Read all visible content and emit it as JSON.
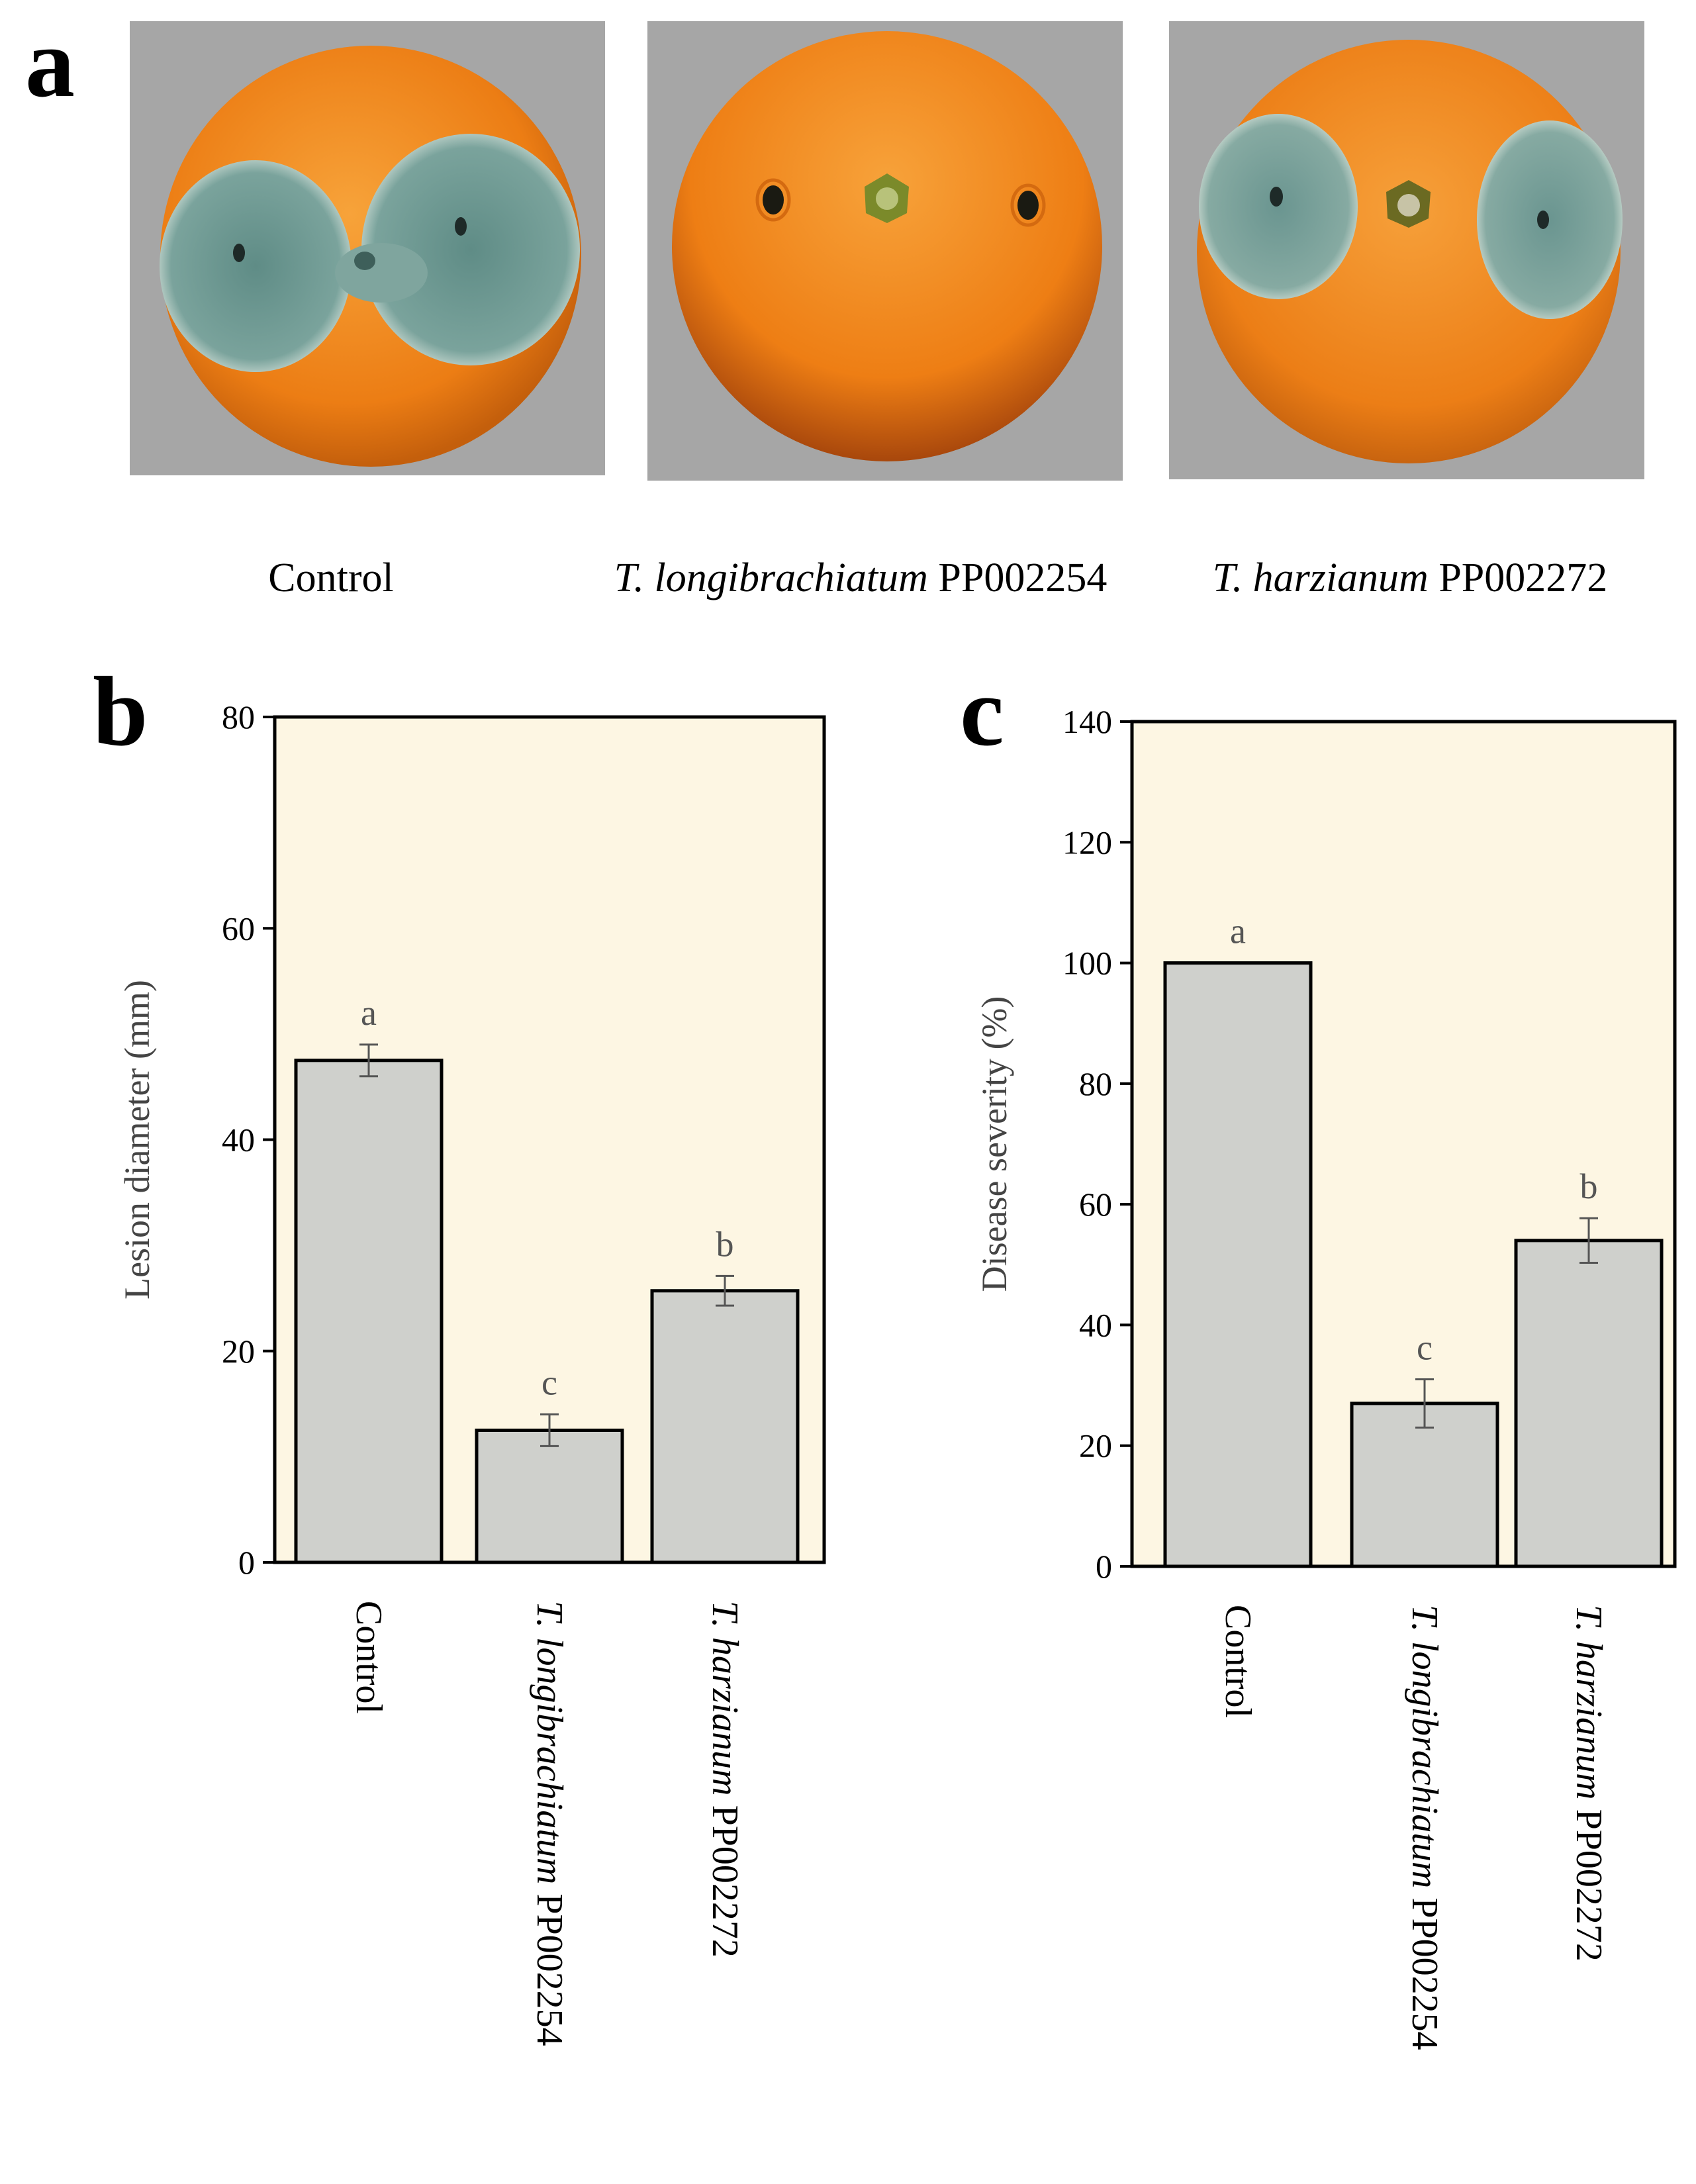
{
  "panel_labels": {
    "a": "a",
    "b": "b",
    "c": "c"
  },
  "photos": [
    {
      "id": "control",
      "species": "",
      "code": "Control"
    },
    {
      "id": "longi",
      "species": "T. longibrachiatum",
      "code": "PP002254"
    },
    {
      "id": "harz",
      "species": "T. harzianum",
      "code": "PP002272"
    }
  ],
  "colors": {
    "plot_background": "#fdf6e3",
    "bar_fill": "#cfd0cc",
    "photo_background": "#a6a6a6",
    "orange": "#f08a1c",
    "mold": "#6f9a94"
  },
  "chart_data": [
    {
      "type": "bar",
      "panel": "b",
      "ylabel": "Lesion diameter (mm)",
      "ylim": [
        0,
        80
      ],
      "yticks": [
        0,
        20,
        40,
        60,
        80
      ],
      "categories": [
        {
          "species": "",
          "code": "Control"
        },
        {
          "species": "T. longibrachiatum",
          "code": "PP002254"
        },
        {
          "species": "T. harzianum",
          "code": "PP002272"
        }
      ],
      "values": [
        47.5,
        12.5,
        25.7
      ],
      "errors": [
        1.5,
        1.5,
        1.4
      ],
      "significance": [
        "a",
        "c",
        "b"
      ]
    },
    {
      "type": "bar",
      "panel": "c",
      "ylabel": "Disease severity (%)",
      "ylim": [
        0,
        140
      ],
      "yticks": [
        0,
        20,
        40,
        60,
        80,
        100,
        120,
        140
      ],
      "categories": [
        {
          "species": "",
          "code": "Control"
        },
        {
          "species": "T. longibrachiatum",
          "code": "PP002254"
        },
        {
          "species": "T. harzianum",
          "code": "PP002272"
        }
      ],
      "values": [
        100,
        27,
        54
      ],
      "errors": [
        0,
        4,
        3.7
      ],
      "significance": [
        "a",
        "c",
        "b"
      ]
    }
  ]
}
